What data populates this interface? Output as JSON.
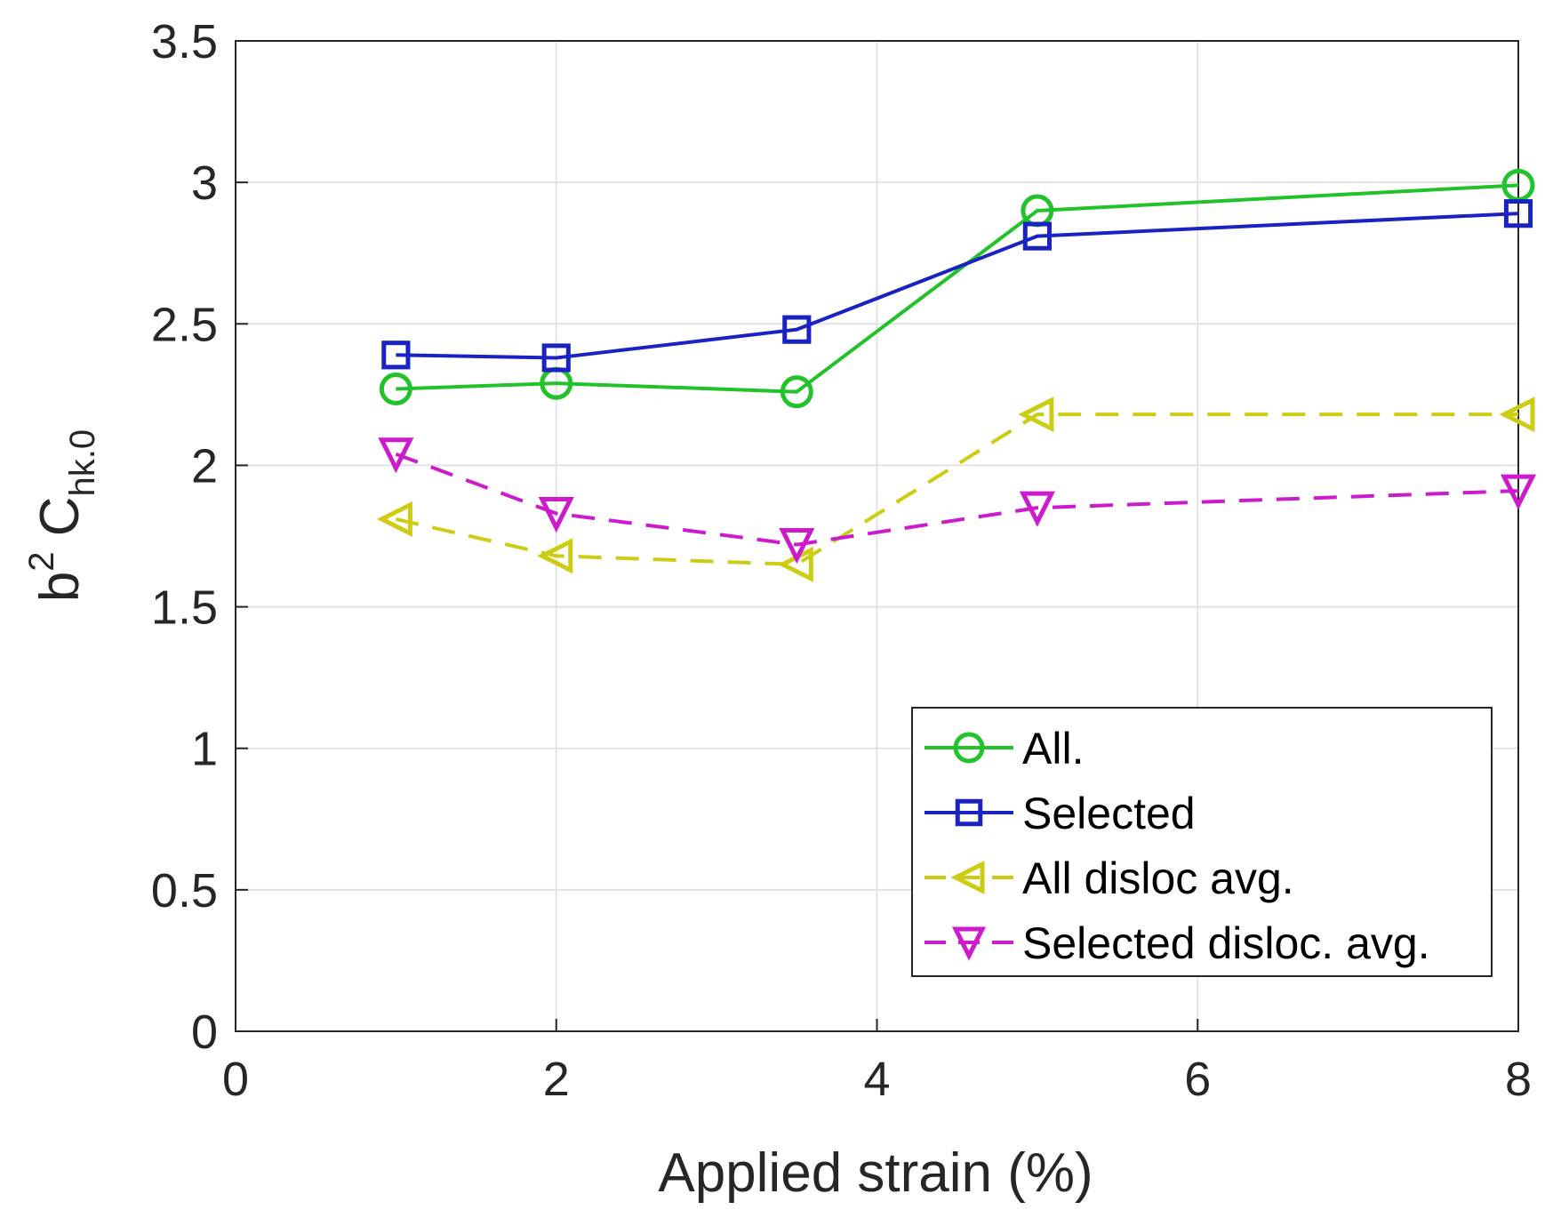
{
  "chart_data": {
    "type": "line",
    "xlabel": "Applied strain (%)",
    "ylabel": {
      "base": "b",
      "superscript": "2",
      "main": " C",
      "subscript": "hk.0"
    },
    "xlim": [
      0,
      8
    ],
    "ylim": [
      0,
      3.5
    ],
    "xticks": [
      "0",
      "2",
      "4",
      "6",
      "8"
    ],
    "yticks": [
      "0",
      "0.5",
      "1",
      "1.5",
      "2",
      "2.5",
      "3",
      "3.5"
    ],
    "grid": true,
    "legend_position": "bottom-right",
    "x": [
      1,
      2,
      3.5,
      5,
      8
    ],
    "series": [
      {
        "name": "All.",
        "values": [
          2.27,
          2.29,
          2.26,
          2.9,
          2.99
        ],
        "color": "#22c22a",
        "marker": "circle",
        "dash": "solid"
      },
      {
        "name": "Selected",
        "values": [
          2.39,
          2.38,
          2.48,
          2.81,
          2.89
        ],
        "color": "#1a23c2",
        "marker": "square",
        "dash": "solid"
      },
      {
        "name": "All disloc avg.",
        "values": [
          1.81,
          1.68,
          1.65,
          2.18,
          2.18
        ],
        "color": "#cccc12",
        "marker": "triangle-left",
        "dash": "dashed"
      },
      {
        "name": "Selected disloc. avg.",
        "values": [
          2.04,
          1.83,
          1.72,
          1.85,
          1.91
        ],
        "color": "#cc1acc",
        "marker": "triangle-down",
        "dash": "dashed"
      }
    ]
  }
}
